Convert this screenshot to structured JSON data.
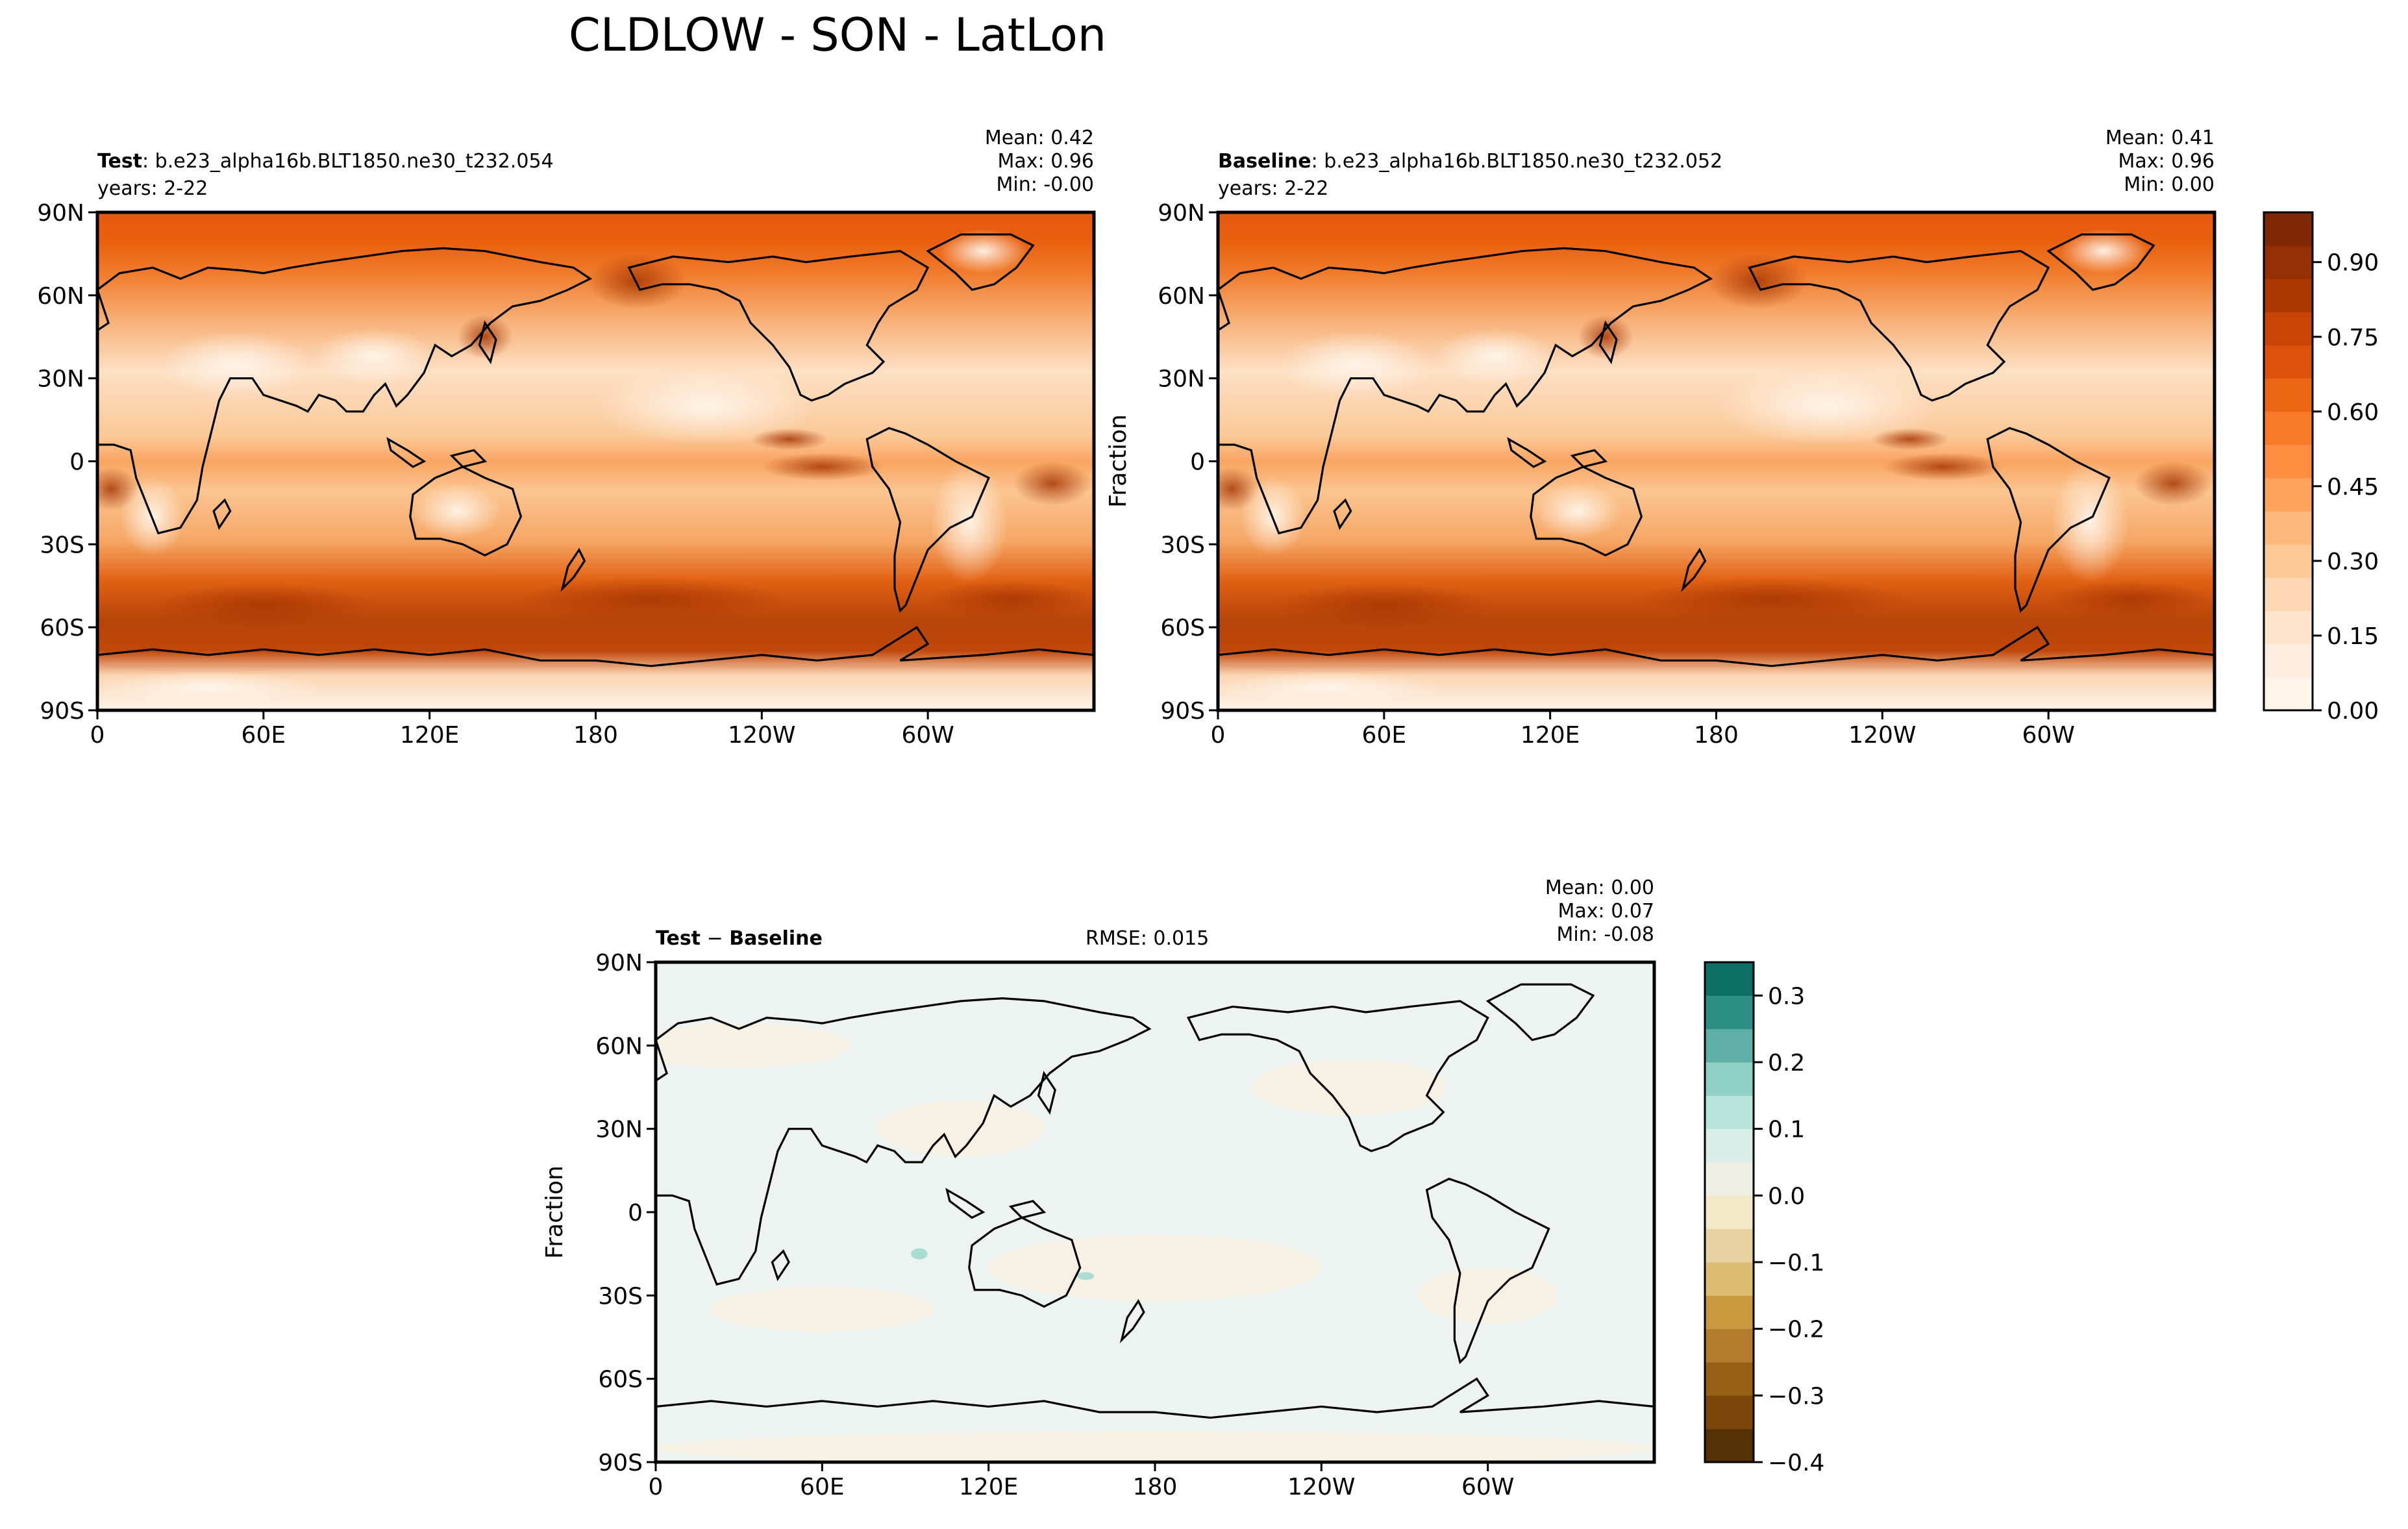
{
  "figure": {
    "title": "CLDLOW - SON - LatLon"
  },
  "chart_data": [
    {
      "type": "heatmap",
      "panel": "test",
      "label_bold": "Test",
      "label_rest": ": b.e23_alpha16b.BLT1850.ne30_t232.054",
      "years": "years: 2-22",
      "stats": {
        "mean": "Mean:  0.42",
        "max": "Max:  0.96",
        "min": "Min: -0.00"
      },
      "ylabel": "",
      "x_ticks": [
        "0",
        "60E",
        "120E",
        "180",
        "120W",
        "60W"
      ],
      "y_ticks": [
        "90N",
        "60N",
        "30N",
        "0",
        "30S",
        "60S",
        "90S"
      ],
      "value_range": [
        0,
        1
      ]
    },
    {
      "type": "heatmap",
      "panel": "baseline",
      "label_bold": "Baseline",
      "label_rest": ": b.e23_alpha16b.BLT1850.ne30_t232.052",
      "years": "years: 2-22",
      "stats": {
        "mean": "Mean:  0.41",
        "max": "Max:  0.96",
        "min": "Min:  0.00"
      },
      "ylabel": "Fraction",
      "x_ticks": [
        "0",
        "60E",
        "120E",
        "180",
        "120W",
        "60W"
      ],
      "y_ticks": [
        "90N",
        "60N",
        "30N",
        "0",
        "30S",
        "60S",
        "90S"
      ],
      "colorbar_ticks": [
        "0.90",
        "0.75",
        "0.60",
        "0.45",
        "0.30",
        "0.15",
        "0.00"
      ],
      "value_range": [
        0,
        1
      ]
    },
    {
      "type": "heatmap",
      "panel": "difference",
      "label_bold_a": "Test",
      "label_minus": " − ",
      "label_bold_b": "Baseline",
      "rmse": "RMSE: 0.015",
      "stats": {
        "mean": "Mean:  0.00",
        "max": "Max:  0.07",
        "min": "Min: -0.08"
      },
      "ylabel": "Fraction",
      "x_ticks": [
        "0",
        "60E",
        "120E",
        "180",
        "120W",
        "60W"
      ],
      "y_ticks": [
        "90N",
        "60N",
        "30N",
        "0",
        "30S",
        "60S",
        "90S"
      ],
      "colorbar_ticks": [
        "0.3",
        "0.2",
        "0.1",
        "0.0",
        "−0.1",
        "−0.2",
        "−0.3",
        "−0.4"
      ],
      "value_range": [
        -0.4,
        0.35
      ]
    }
  ],
  "colors": {
    "seq_dark": "#7f2704",
    "seq_mid": "#e6550d",
    "seq_light": "#fdd0a2",
    "seq_white": "#fff5eb",
    "div_teal": "#01665e",
    "div_brown": "#8c510a",
    "div_neutral": "#f5f5f5"
  }
}
